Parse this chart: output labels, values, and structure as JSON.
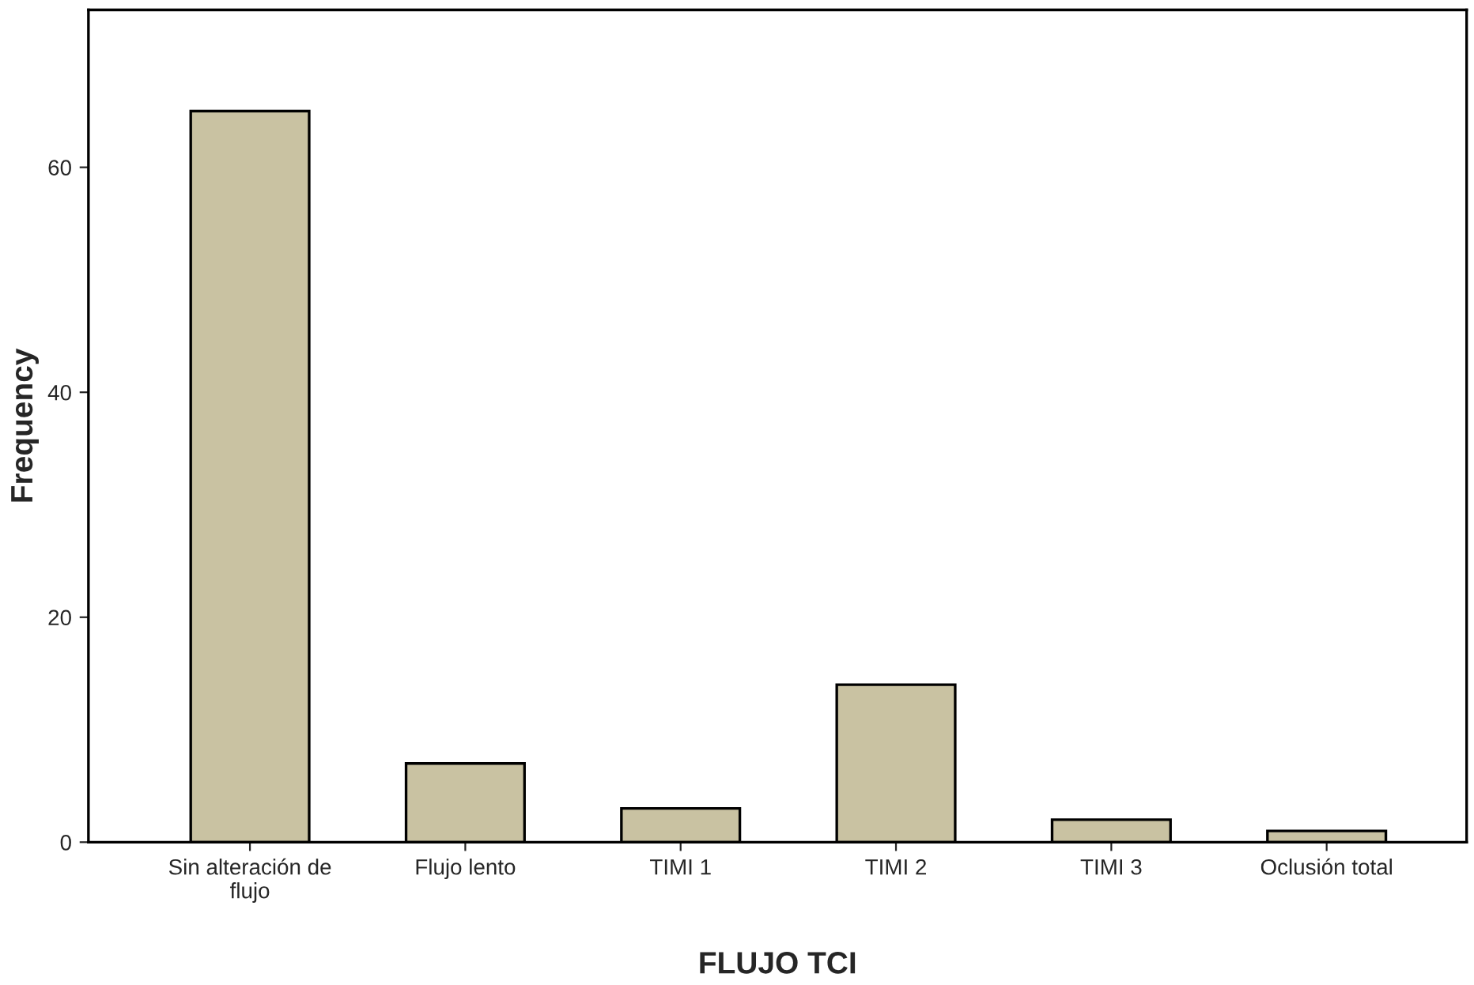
{
  "chart_data": {
    "type": "bar",
    "xlabel": "FLUJO TCI",
    "ylabel": "Frequency",
    "categories": [
      "Sin alteración de\nflujo",
      "Flujo lento",
      "TIMI 1",
      "TIMI 2",
      "TIMI 3",
      "Oclusión total"
    ],
    "values": [
      65,
      7,
      3,
      14,
      2,
      1
    ],
    "color": "#c9c2a2",
    "ylim": [
      0,
      74
    ],
    "yticks": [
      0,
      20,
      40,
      60
    ],
    "grid": false
  }
}
